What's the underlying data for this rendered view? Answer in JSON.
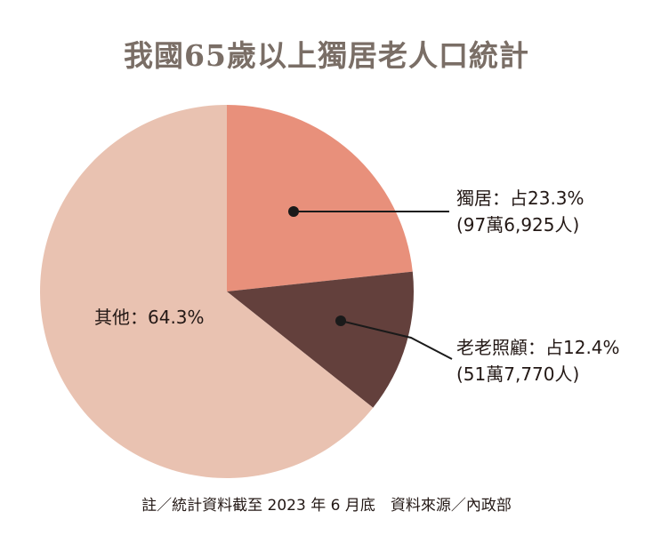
{
  "title": "我國65歲以上獨居老人口統計",
  "chart_data": {
    "type": "pie",
    "title": "我國65歲以上獨居老人口統計",
    "slices": [
      {
        "label": "獨居",
        "percent": 23.3,
        "percent_text": "占23.3%",
        "count_text": "(97萬6,925人)",
        "color": "#e8907b"
      },
      {
        "label": "老老照顧",
        "percent": 12.4,
        "percent_text": "占12.4%",
        "count_text": "(51萬7,770人)",
        "color": "#63403c"
      },
      {
        "label": "其他",
        "percent": 64.3,
        "percent_text": "64.3%",
        "count_text": "",
        "color": "#e9c2b1"
      }
    ]
  },
  "labels": {
    "solo_line1": "獨居：占23.3%",
    "solo_line2": "(97萬6,925人)",
    "care_line1": "老老照顧：占12.4%",
    "care_line2": "(51萬7,770人)",
    "other_line1": "其他：64.3%"
  },
  "note": "註／統計資料截至 2023 年 6 月底　資料來源／內政部"
}
